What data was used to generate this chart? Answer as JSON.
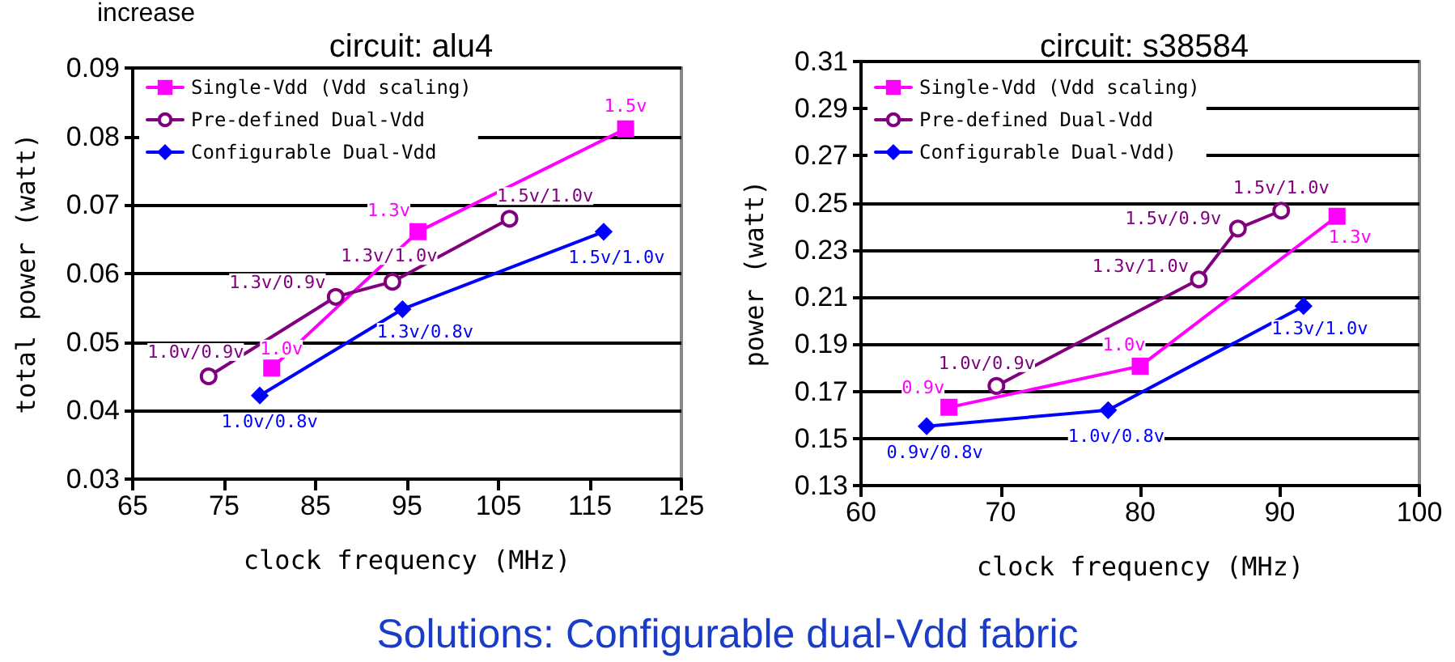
{
  "chart_data": [
    {
      "type": "line",
      "title": "circuit: alu4",
      "xlabel": "clock frequency (MHz)",
      "ylabel": "total power (watt)",
      "annotations": [
        "increase",
        {
          "text": "1.0v",
          "x": 80.2,
          "y": 0.0462
        },
        {
          "text": "1.3v",
          "x": 96.2,
          "y": 0.0661
        },
        {
          "text": "1.5v",
          "x": 118.9,
          "y": 0.0811
        },
        {
          "text": "1.0v/0.9v",
          "x": 73.3,
          "y": 0.045
        },
        {
          "text": "1.3v/0.9v",
          "x": 87.2,
          "y": 0.0566
        },
        {
          "text": "1.3v/1.0v",
          "x": 93.4,
          "y": 0.0588
        },
        {
          "text": "1.5v/1.0v",
          "x": 106.2,
          "y": 0.068
        },
        {
          "text": "1.0v/0.8v",
          "x": 78.9,
          "y": 0.0422
        },
        {
          "text": "1.3v/0.8v",
          "x": 94.5,
          "y": 0.0548
        },
        {
          "text": "1.5v/1.0v",
          "x": 116.5,
          "y": 0.0661
        }
      ],
      "xlim": [
        65,
        125
      ],
      "xticks": [
        65,
        75,
        85,
        95,
        105,
        115,
        125
      ],
      "ylim": [
        0.03,
        0.09
      ],
      "yticks": [
        0.03,
        0.04,
        0.05,
        0.06,
        0.07,
        0.08,
        0.09
      ],
      "grid": "y",
      "legend": "top left",
      "series": [
        {
          "name": "Single-Vdd (Vdd scaling)",
          "color": "#ff00ff",
          "marker": "square",
          "x": [
            80.2,
            96.2,
            118.9
          ],
          "values": [
            0.0462,
            0.0661,
            0.0811
          ]
        },
        {
          "name": "Pre-defined Dual-Vdd",
          "color": "#800080",
          "marker": "circle",
          "x": [
            73.3,
            87.2,
            93.4,
            106.2
          ],
          "values": [
            0.045,
            0.0566,
            0.0588,
            0.068
          ]
        },
        {
          "name": "Configurable Dual-Vdd",
          "color": "#0000ff",
          "marker": "diamond",
          "x": [
            78.9,
            94.5,
            116.5
          ],
          "values": [
            0.0422,
            0.0548,
            0.0661
          ]
        }
      ]
    },
    {
      "type": "line",
      "title": "circuit: s38584",
      "xlabel": "clock frequency (MHz)",
      "ylabel": "power (watt)",
      "annotations": [
        "Solutions: Configurable dual-Vdd fabric",
        {
          "text": "0.9v",
          "x": 66.3,
          "y": 0.1632
        },
        {
          "text": "1.0v",
          "x": 80.0,
          "y": 0.1807
        },
        {
          "text": "1.3v",
          "x": 94.1,
          "y": 0.2443
        },
        {
          "text": "1.0v/0.9v",
          "x": 69.7,
          "y": 0.1723
        },
        {
          "text": "1.3v/1.0v",
          "x": 84.2,
          "y": 0.2175
        },
        {
          "text": "1.5v/0.9v",
          "x": 87.0,
          "y": 0.2391
        },
        {
          "text": "1.5v/1.0v",
          "x": 90.1,
          "y": 0.2467
        },
        {
          "text": "0.9v/0.8v",
          "x": 64.7,
          "y": 0.1552
        },
        {
          "text": "1.0v/0.8v",
          "x": 77.7,
          "y": 0.162
        },
        {
          "text": "1.3v/1.0v",
          "x": 91.7,
          "y": 0.2062
        }
      ],
      "xlim": [
        60,
        100
      ],
      "xticks": [
        60,
        70,
        80,
        90,
        100
      ],
      "ylim": [
        0.13,
        0.31
      ],
      "yticks": [
        0.13,
        0.15,
        0.17,
        0.19,
        0.21,
        0.23,
        0.25,
        0.27,
        0.29,
        0.31
      ],
      "grid": "y",
      "legend": "top left",
      "series": [
        {
          "name": "Single-Vdd (Vdd scaling)",
          "color": "#ff00ff",
          "marker": "square",
          "x": [
            66.3,
            80.0,
            94.1
          ],
          "values": [
            0.1632,
            0.1807,
            0.2443
          ]
        },
        {
          "name": "Pre-defined Dual-Vdd",
          "color": "#800080",
          "marker": "circle",
          "x": [
            69.7,
            84.2,
            87.0,
            90.1
          ],
          "values": [
            0.1723,
            0.2175,
            0.2391,
            0.2467
          ]
        },
        {
          "name": "Configurable Dual-Vdd)",
          "color": "#0000ff",
          "marker": "diamond",
          "x": [
            64.7,
            77.7,
            91.7
          ],
          "values": [
            0.1552,
            0.162,
            0.2062
          ]
        }
      ]
    }
  ]
}
